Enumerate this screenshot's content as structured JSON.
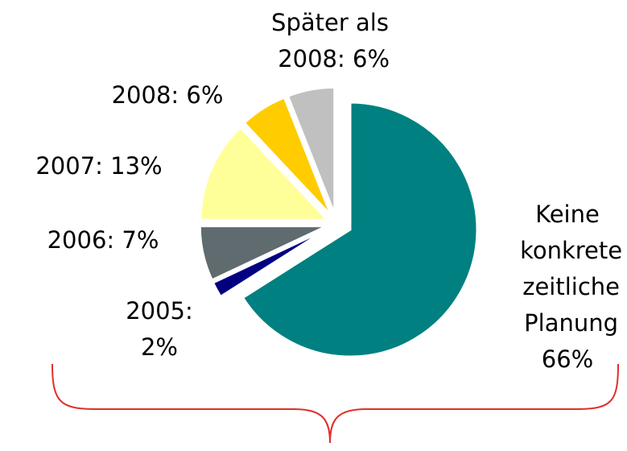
{
  "chart_data": {
    "type": "pie",
    "categories": [
      "Keine konkrete zeitliche Planung",
      "2005:",
      "2006:",
      "2007:",
      "2008:",
      "Später als 2008:"
    ],
    "values": [
      66,
      2,
      7,
      13,
      6,
      6
    ],
    "value_labels": [
      "66%",
      "2%",
      "7%",
      "13%",
      "6%",
      "6%"
    ],
    "colors": [
      "#008080",
      "#000080",
      "#5f6b6e",
      "#ffff99",
      "#ffcc00",
      "#c0c0c0"
    ]
  }
}
